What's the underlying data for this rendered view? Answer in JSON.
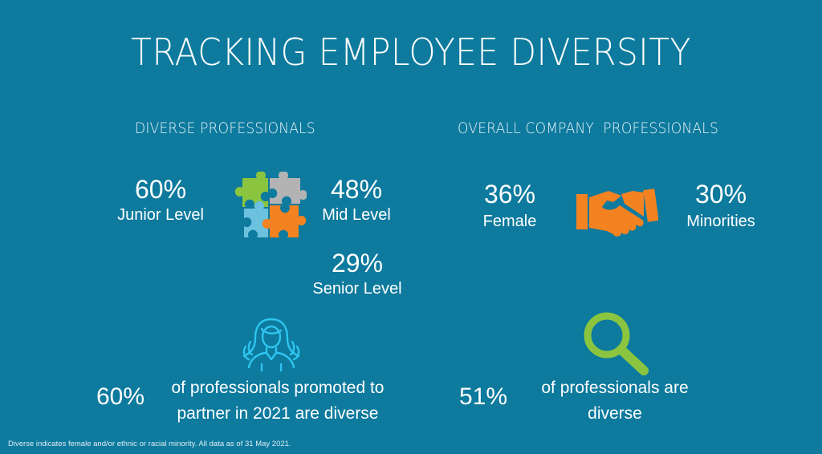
{
  "title": "TRACKING EMPLOYEE DIVERSITY",
  "left_section": {
    "heading": "DIVERSE PROFESSIONALS",
    "junior": {
      "value": "60%",
      "label": "Junior Level"
    },
    "mid": {
      "value": "48%",
      "label": "Mid Level"
    },
    "senior": {
      "value": "29%",
      "label": "Senior Level"
    },
    "promotion": {
      "value": "60%",
      "text_line1": "of professionals promoted to",
      "text_line2": "partner in 2021 are diverse"
    }
  },
  "right_section": {
    "heading": "OVERALL COMPANY  PROFESSIONALS",
    "female": {
      "value": "36%",
      "label": "Female"
    },
    "minorities": {
      "value": "30%",
      "label": "Minorities"
    },
    "diverse": {
      "value": "51%",
      "text_line1": "of professionals are",
      "text_line2": "diverse"
    }
  },
  "footnote": "Diverse indicates female and/or ethnic or racial minority. All data as of 31 May 2021.",
  "icons": {
    "puzzle": "puzzle-icon",
    "handshake": "handshake-icon",
    "person": "person-icon",
    "magnifier": "magnifier-icon"
  },
  "colors": {
    "background": "#0d7a9e",
    "puzzle_green": "#8bc53f",
    "puzzle_gray": "#b3b3b3",
    "puzzle_blue": "#6cc1de",
    "puzzle_orange": "#f58220",
    "handshake_orange": "#f58220",
    "person_cyan": "#2ec5f0",
    "magnifier_green": "#8bc53f"
  }
}
